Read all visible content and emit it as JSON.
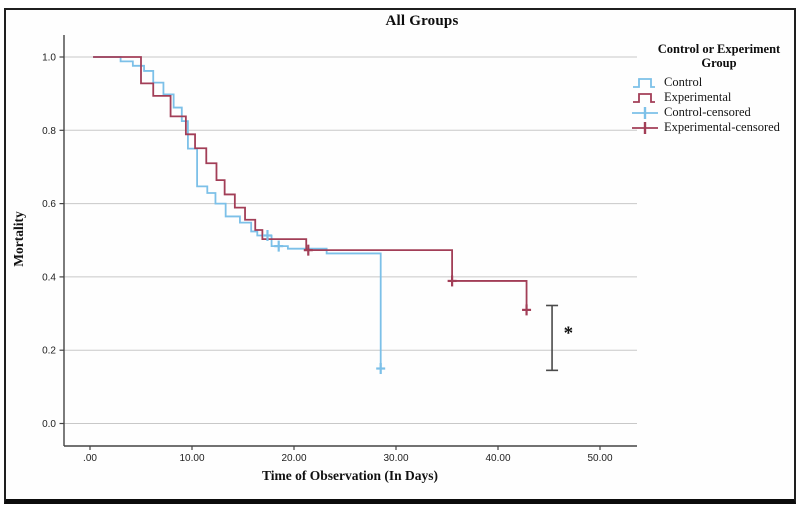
{
  "figure": {
    "title": "All Groups",
    "x_axis": {
      "label": "Time of Observation (In Days)",
      "ticks": [
        ".00",
        "10.00",
        "20.00",
        "30.00",
        "40.00",
        "50.00"
      ],
      "tick_values": [
        0,
        10,
        20,
        30,
        40,
        50
      ]
    },
    "y_axis": {
      "label": "Mortality",
      "ticks": [
        "1.0",
        "0.8",
        "0.6",
        "0.4",
        "0.2",
        "0.0"
      ],
      "tick_values": [
        1.0,
        0.8,
        0.6,
        0.4,
        0.2,
        0.0
      ]
    },
    "legend": {
      "title": "Control or Experiment Group",
      "title_lines": [
        "Control or Experiment",
        "Group"
      ],
      "items": [
        {
          "label": "Control",
          "type": "step",
          "color": "#7cc0e8"
        },
        {
          "label": "Experimental",
          "type": "step",
          "color": "#a23e57"
        },
        {
          "label": "Control-censored",
          "type": "censor",
          "color": "#7cc0e8"
        },
        {
          "label": "Experimental-censored",
          "type": "censor",
          "color": "#a23e57"
        }
      ]
    },
    "colors": {
      "control": "#7cc0e8",
      "experimental": "#a23e57",
      "gridline": "#c8c8c8",
      "axis": "#444444",
      "annotation": "#4a4a4a"
    }
  },
  "chart_data": {
    "type": "line",
    "subtype": "kaplan_meier_step_survival",
    "title": "All Groups",
    "xlabel": "Time of Observation (In Days)",
    "ylabel": "Mortality",
    "xlim": [
      0,
      50
    ],
    "ylim": [
      0.0,
      1.0
    ],
    "grid": "horizontal",
    "legend_position": "right",
    "series": [
      {
        "name": "Control",
        "color": "#7cc0e8",
        "start": [
          0.3,
          1.0
        ],
        "steps": [
          [
            3.0,
            0.988
          ],
          [
            4.2,
            0.976
          ],
          [
            5.3,
            0.962
          ],
          [
            6.2,
            0.93
          ],
          [
            7.2,
            0.898
          ],
          [
            8.2,
            0.862
          ],
          [
            9.0,
            0.825
          ],
          [
            9.6,
            0.75
          ],
          [
            10.5,
            0.647
          ],
          [
            11.5,
            0.629
          ],
          [
            12.3,
            0.6
          ],
          [
            13.3,
            0.565
          ],
          [
            14.7,
            0.548
          ],
          [
            15.8,
            0.524
          ],
          [
            16.4,
            0.513
          ],
          [
            17.8,
            0.484
          ],
          [
            19.4,
            0.477
          ],
          [
            23.2,
            0.464
          ],
          [
            28.5,
            0.15
          ]
        ],
        "censored": [
          [
            17.4,
            0.513
          ],
          [
            18.5,
            0.484
          ],
          [
            28.5,
            0.15
          ]
        ]
      },
      {
        "name": "Experimental",
        "color": "#a23e57",
        "start": [
          0.3,
          1.0
        ],
        "steps": [
          [
            5.0,
            0.928
          ],
          [
            6.2,
            0.894
          ],
          [
            7.9,
            0.838
          ],
          [
            9.4,
            0.789
          ],
          [
            10.3,
            0.751
          ],
          [
            11.4,
            0.71
          ],
          [
            12.4,
            0.664
          ],
          [
            13.2,
            0.625
          ],
          [
            14.2,
            0.589
          ],
          [
            15.2,
            0.556
          ],
          [
            16.2,
            0.528
          ],
          [
            16.9,
            0.503
          ],
          [
            21.2,
            0.473
          ],
          [
            35.5,
            0.389
          ],
          [
            42.8,
            0.31
          ]
        ],
        "censored": [
          [
            21.4,
            0.473
          ],
          [
            35.5,
            0.389
          ],
          [
            42.8,
            0.31
          ]
        ]
      }
    ],
    "annotation": {
      "type": "error_bar_with_asterisk",
      "x": 45.3,
      "y_top": 0.322,
      "y_bottom": 0.145,
      "label": "*",
      "label_x": 46.9,
      "label_y": 0.252,
      "color": "#4a4a4a"
    }
  }
}
